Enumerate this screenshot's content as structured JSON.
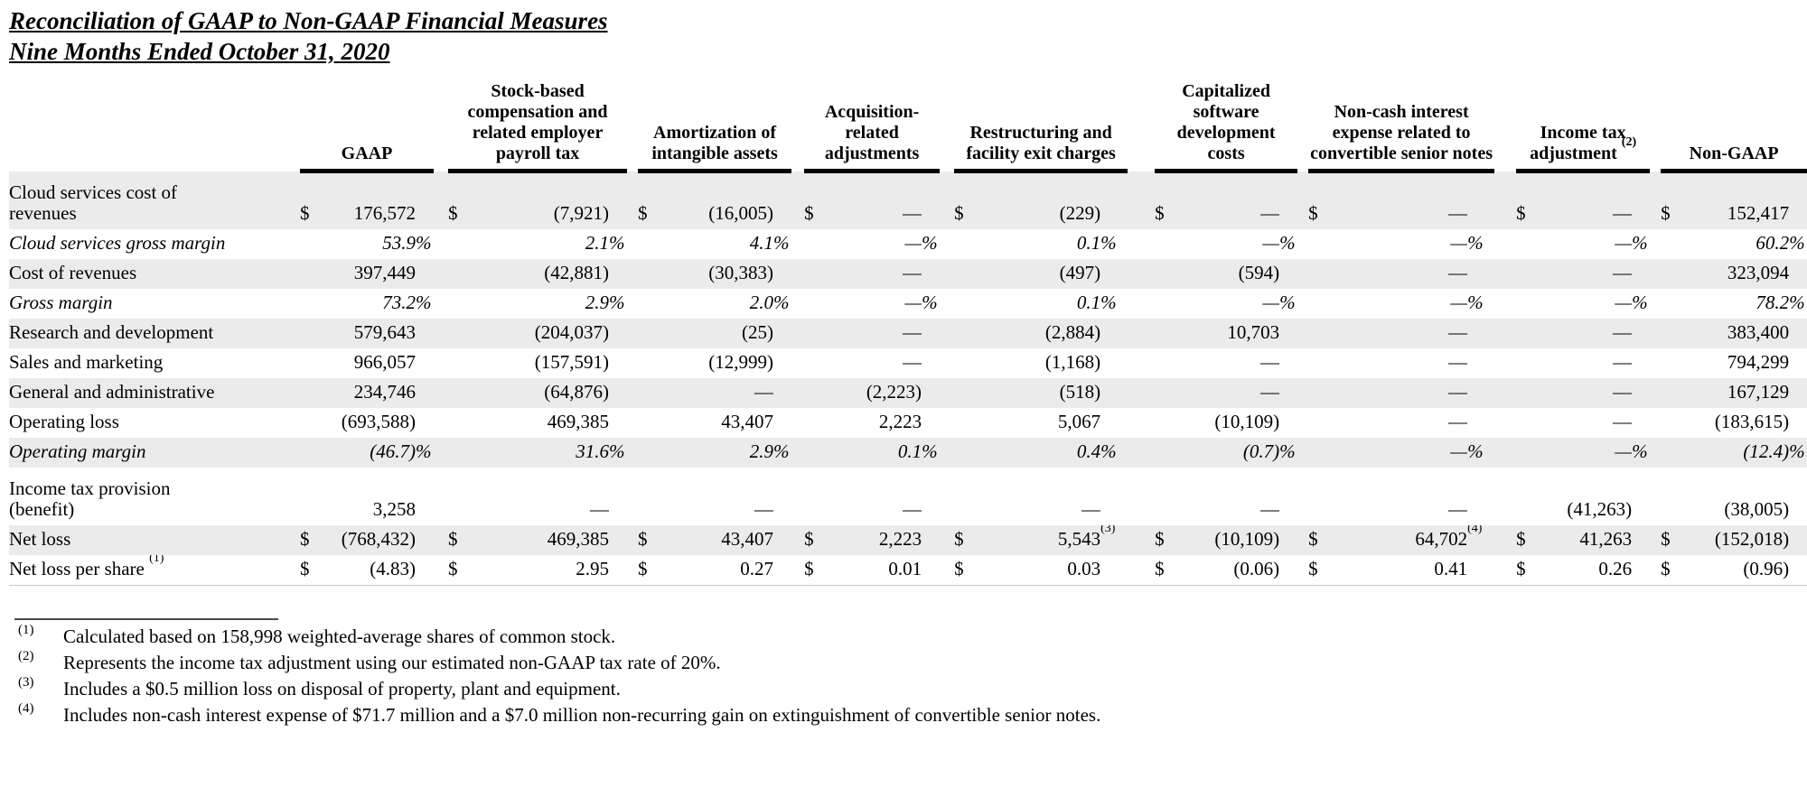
{
  "title": {
    "line1": "Reconciliation of GAAP to Non-GAAP Financial Measures",
    "line2": "Nine Months Ended October 31, 2020"
  },
  "colors": {
    "stripe": "#ebebeb",
    "text": "#000000",
    "header_rule": "#000000"
  },
  "table": {
    "columns": [
      {
        "label": "GAAP",
        "note": ""
      },
      {
        "label": "Stock-based compensation and related employer payroll tax",
        "note": ""
      },
      {
        "label": "Amortization of intangible assets",
        "note": ""
      },
      {
        "label": "Acquisition-related adjustments",
        "note": ""
      },
      {
        "label": "Restructuring and facility exit charges",
        "note": ""
      },
      {
        "label": "Capitalized software development costs",
        "note": ""
      },
      {
        "label": "Non-cash interest expense related to convertible senior notes",
        "note": ""
      },
      {
        "label": "Income tax adjustment",
        "note": "(2)"
      },
      {
        "label": "Non-GAAP",
        "note": ""
      }
    ],
    "rows": [
      {
        "label": "Cloud services cost of revenues",
        "shaded": true,
        "italic": false,
        "wrap": true,
        "label_note": "",
        "cells": [
          [
            "$",
            "176,572",
            ""
          ],
          [
            "$",
            "(7,921)",
            ""
          ],
          [
            "$",
            "(16,005)",
            ""
          ],
          [
            "$",
            "—",
            ""
          ],
          [
            "$",
            "(229)",
            ""
          ],
          [
            "$",
            "—",
            ""
          ],
          [
            "$",
            "—",
            ""
          ],
          [
            "$",
            "—",
            ""
          ],
          [
            "$",
            "152,417",
            ""
          ]
        ]
      },
      {
        "label": "Cloud services gross margin",
        "shaded": false,
        "italic": true,
        "wrap": false,
        "label_note": "",
        "cells": [
          [
            "",
            "53.9",
            "%"
          ],
          [
            "",
            "2.1",
            "%"
          ],
          [
            "",
            "4.1",
            "%"
          ],
          [
            "",
            "—",
            "%"
          ],
          [
            "",
            "0.1",
            "%"
          ],
          [
            "",
            "—",
            "%"
          ],
          [
            "",
            "—",
            "%"
          ],
          [
            "",
            "—",
            "%"
          ],
          [
            "",
            "60.2",
            "%"
          ]
        ]
      },
      {
        "label": "Cost of revenues",
        "shaded": true,
        "italic": false,
        "wrap": false,
        "label_note": "",
        "cells": [
          [
            "",
            "397,449",
            ""
          ],
          [
            "",
            "(42,881)",
            ""
          ],
          [
            "",
            "(30,383)",
            ""
          ],
          [
            "",
            "—",
            ""
          ],
          [
            "",
            "(497)",
            ""
          ],
          [
            "",
            "(594)",
            ""
          ],
          [
            "",
            "—",
            ""
          ],
          [
            "",
            "—",
            ""
          ],
          [
            "",
            "323,094",
            ""
          ]
        ]
      },
      {
        "label": "Gross margin",
        "shaded": false,
        "italic": true,
        "wrap": false,
        "label_note": "",
        "cells": [
          [
            "",
            "73.2",
            "%"
          ],
          [
            "",
            "2.9",
            "%"
          ],
          [
            "",
            "2.0",
            "%"
          ],
          [
            "",
            "—",
            "%"
          ],
          [
            "",
            "0.1",
            "%"
          ],
          [
            "",
            "—",
            "%"
          ],
          [
            "",
            "—",
            "%"
          ],
          [
            "",
            "—",
            "%"
          ],
          [
            "",
            "78.2",
            "%"
          ]
        ]
      },
      {
        "label": "Research and development",
        "shaded": true,
        "italic": false,
        "wrap": false,
        "label_note": "",
        "cells": [
          [
            "",
            "579,643",
            ""
          ],
          [
            "",
            "(204,037)",
            ""
          ],
          [
            "",
            "(25)",
            ""
          ],
          [
            "",
            "—",
            ""
          ],
          [
            "",
            "(2,884)",
            ""
          ],
          [
            "",
            "10,703",
            ""
          ],
          [
            "",
            "—",
            ""
          ],
          [
            "",
            "—",
            ""
          ],
          [
            "",
            "383,400",
            ""
          ]
        ]
      },
      {
        "label": "Sales and marketing",
        "shaded": false,
        "italic": false,
        "wrap": false,
        "label_note": "",
        "cells": [
          [
            "",
            "966,057",
            ""
          ],
          [
            "",
            "(157,591)",
            ""
          ],
          [
            "",
            "(12,999)",
            ""
          ],
          [
            "",
            "—",
            ""
          ],
          [
            "",
            "(1,168)",
            ""
          ],
          [
            "",
            "—",
            ""
          ],
          [
            "",
            "—",
            ""
          ],
          [
            "",
            "—",
            ""
          ],
          [
            "",
            "794,299",
            ""
          ]
        ]
      },
      {
        "label": "General and administrative",
        "shaded": true,
        "italic": false,
        "wrap": false,
        "label_note": "",
        "cells": [
          [
            "",
            "234,746",
            ""
          ],
          [
            "",
            "(64,876)",
            ""
          ],
          [
            "",
            "—",
            ""
          ],
          [
            "",
            "(2,223)",
            ""
          ],
          [
            "",
            "(518)",
            ""
          ],
          [
            "",
            "—",
            ""
          ],
          [
            "",
            "—",
            ""
          ],
          [
            "",
            "—",
            ""
          ],
          [
            "",
            "167,129",
            ""
          ]
        ]
      },
      {
        "label": "Operating loss",
        "shaded": false,
        "italic": false,
        "wrap": false,
        "label_note": "",
        "cells": [
          [
            "",
            "(693,588)",
            ""
          ],
          [
            "",
            "469,385",
            ""
          ],
          [
            "",
            "43,407",
            ""
          ],
          [
            "",
            "2,223",
            ""
          ],
          [
            "",
            "5,067",
            ""
          ],
          [
            "",
            "(10,109)",
            ""
          ],
          [
            "",
            "—",
            ""
          ],
          [
            "",
            "—",
            ""
          ],
          [
            "",
            "(183,615)",
            ""
          ]
        ]
      },
      {
        "label": "Operating margin",
        "shaded": true,
        "italic": true,
        "wrap": false,
        "label_note": "",
        "cells": [
          [
            "",
            "(46.7)",
            "%"
          ],
          [
            "",
            "31.6",
            "%"
          ],
          [
            "",
            "2.9",
            "%"
          ],
          [
            "",
            "0.1",
            "%"
          ],
          [
            "",
            "0.4",
            "%"
          ],
          [
            "",
            "(0.7)",
            "%"
          ],
          [
            "",
            "—",
            "%"
          ],
          [
            "",
            "—",
            "%"
          ],
          [
            "",
            "(12.4)",
            "%"
          ]
        ]
      },
      {
        "label": "Income tax provision (benefit)",
        "shaded": false,
        "italic": false,
        "wrap": true,
        "label_note": "",
        "cells": [
          [
            "",
            "3,258",
            ""
          ],
          [
            "",
            "—",
            ""
          ],
          [
            "",
            "—",
            ""
          ],
          [
            "",
            "—",
            ""
          ],
          [
            "",
            "—",
            ""
          ],
          [
            "",
            "—",
            ""
          ],
          [
            "",
            "—",
            ""
          ],
          [
            "",
            "(41,263)",
            ""
          ],
          [
            "",
            "(38,005)",
            ""
          ]
        ]
      },
      {
        "label": "Net loss",
        "shaded": true,
        "italic": false,
        "wrap": false,
        "label_note": "",
        "cells": [
          [
            "$",
            "(768,432)",
            ""
          ],
          [
            "$",
            "469,385",
            ""
          ],
          [
            "$",
            "43,407",
            ""
          ],
          [
            "$",
            "2,223",
            ""
          ],
          [
            "$",
            "5,543",
            "(3)"
          ],
          [
            "$",
            "(10,109)",
            ""
          ],
          [
            "$",
            "64,702",
            "(4)"
          ],
          [
            "$",
            "41,263",
            ""
          ],
          [
            "$",
            "(152,018)",
            ""
          ]
        ]
      },
      {
        "label": "Net loss per share",
        "shaded": false,
        "italic": false,
        "wrap": false,
        "label_note": "(1)",
        "cells": [
          [
            "$",
            "(4.83)",
            ""
          ],
          [
            "$",
            "2.95",
            ""
          ],
          [
            "$",
            "0.27",
            ""
          ],
          [
            "$",
            "0.01",
            ""
          ],
          [
            "$",
            "0.03",
            ""
          ],
          [
            "$",
            "(0.06)",
            ""
          ],
          [
            "$",
            "0.41",
            ""
          ],
          [
            "$",
            "0.26",
            ""
          ],
          [
            "$",
            "(0.96)",
            ""
          ]
        ]
      }
    ]
  },
  "footnotes": [
    {
      "marker": "(1)",
      "text": "Calculated based on 158,998 weighted-average shares of common stock."
    },
    {
      "marker": "(2)",
      "text": "Represents the income tax adjustment using our estimated non-GAAP tax rate of 20%."
    },
    {
      "marker": "(3)",
      "text": "Includes a $0.5 million loss on disposal of property, plant and equipment."
    },
    {
      "marker": "(4)",
      "text": "Includes non-cash interest expense of $71.7 million and a $7.0 million non-recurring gain on extinguishment of convertible senior notes."
    }
  ]
}
